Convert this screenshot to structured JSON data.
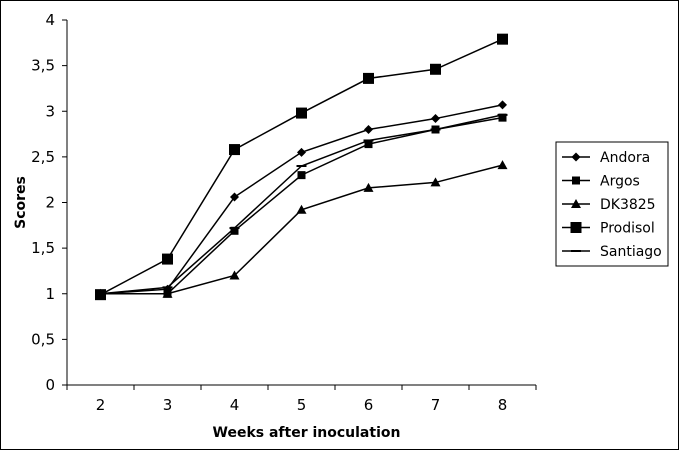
{
  "chart_data": {
    "type": "line",
    "title": "",
    "xlabel": "Weeks after inoculation",
    "ylabel": "Scores",
    "x": [
      2,
      3,
      4,
      5,
      6,
      7,
      8
    ],
    "x_tick_labels": [
      "2",
      "3",
      "4",
      "5",
      "6",
      "7",
      "8"
    ],
    "ylim": [
      0,
      4
    ],
    "y_ticks": [
      0,
      0.5,
      1,
      1.5,
      2,
      2.5,
      3,
      3.5,
      4
    ],
    "y_tick_labels": [
      "0",
      "0,5",
      "1",
      "1,5",
      "2",
      "2,5",
      "3",
      "3,5",
      "4"
    ],
    "grid": false,
    "legend_position": "right",
    "series": [
      {
        "name": "Andora",
        "marker": "diamond",
        "values": [
          1,
          1.05,
          2.06,
          2.55,
          2.8,
          2.92,
          3.07
        ]
      },
      {
        "name": "Argos",
        "marker": "square-small",
        "values": [
          1,
          1,
          1.69,
          2.3,
          2.64,
          2.8,
          2.93
        ]
      },
      {
        "name": "DK3825",
        "marker": "triangle",
        "values": [
          1,
          1,
          1.2,
          1.92,
          2.16,
          2.22,
          2.41
        ]
      },
      {
        "name": "Prodisol",
        "marker": "square-large",
        "values": [
          0.99,
          1.38,
          2.58,
          2.98,
          3.36,
          3.46,
          3.79
        ]
      },
      {
        "name": "Santiago",
        "marker": "dash",
        "values": [
          1,
          1.07,
          1.72,
          2.4,
          2.68,
          2.8,
          2.96
        ]
      }
    ]
  }
}
